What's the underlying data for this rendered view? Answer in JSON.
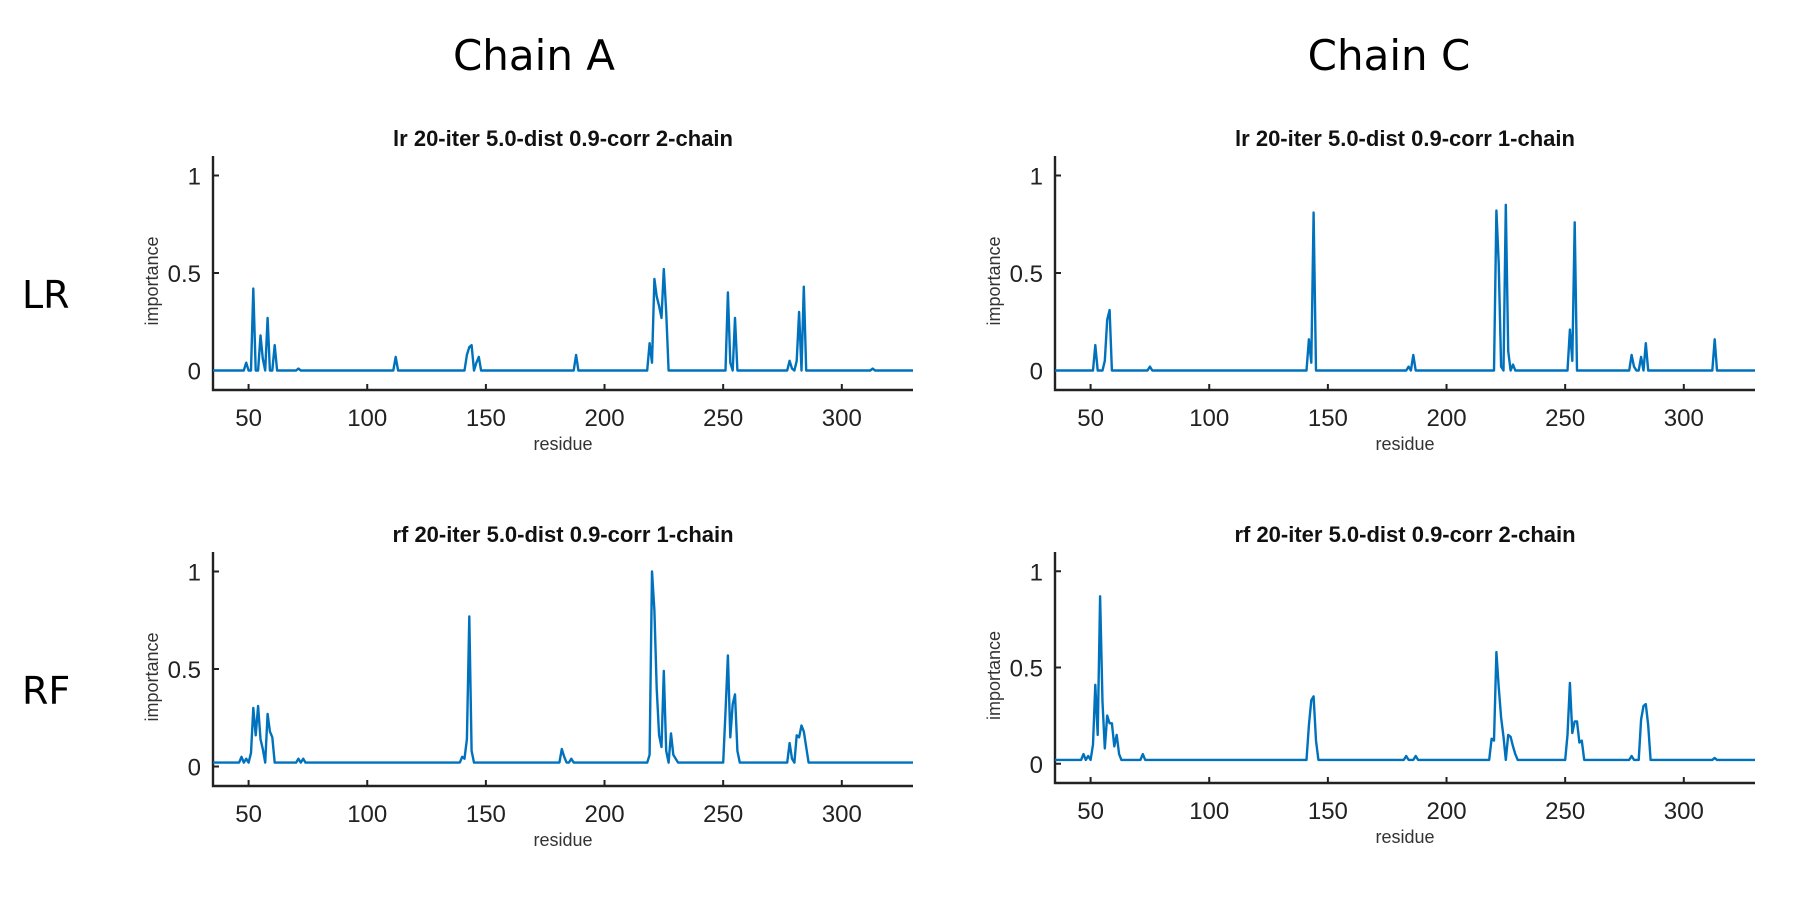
{
  "figure": {
    "column_titles": [
      "Chain A",
      "Chain C"
    ],
    "row_titles": [
      "LR",
      "RF"
    ]
  },
  "chart_data": [
    {
      "type": "line",
      "title": "lr 20-iter 5.0-dist 0.9-corr 2-chain",
      "xlabel": "residue",
      "ylabel": "importance",
      "xlim": [
        35,
        330
      ],
      "ylim": [
        -0.1,
        1.1
      ],
      "xticks": [
        50,
        100,
        150,
        200,
        250,
        300
      ],
      "yticks": [
        0,
        0.5,
        1
      ],
      "ytick_labels": [
        "0",
        "0.5",
        "1"
      ],
      "grid": false,
      "color": "#0072BD",
      "baseline": 0,
      "peaks": [
        [
          49,
          0.04
        ],
        [
          52,
          0.42
        ],
        [
          55,
          0.18
        ],
        [
          56,
          0.06
        ],
        [
          58,
          0.27
        ],
        [
          61,
          0.13
        ],
        [
          71,
          0.01
        ],
        [
          112,
          0.07
        ],
        [
          142,
          0.08
        ],
        [
          143,
          0.12
        ],
        [
          144,
          0.13
        ],
        [
          146,
          0.04
        ],
        [
          147,
          0.07
        ],
        [
          188,
          0.08
        ],
        [
          219,
          0.14
        ],
        [
          220,
          0.04
        ],
        [
          221,
          0.47
        ],
        [
          222,
          0.38
        ],
        [
          223,
          0.33
        ],
        [
          224,
          0.27
        ],
        [
          225,
          0.52
        ],
        [
          226,
          0.3
        ],
        [
          252,
          0.4
        ],
        [
          253,
          0.04
        ],
        [
          255,
          0.27
        ],
        [
          278,
          0.05
        ],
        [
          279,
          0.01
        ],
        [
          281,
          0.05
        ],
        [
          282,
          0.3
        ],
        [
          284,
          0.43
        ],
        [
          313,
          0.01
        ]
      ]
    },
    {
      "type": "line",
      "title": "lr 20-iter 5.0-dist 0.9-corr 1-chain",
      "xlabel": "residue",
      "ylabel": "importance",
      "xlim": [
        35,
        330
      ],
      "ylim": [
        -0.1,
        1.1
      ],
      "xticks": [
        50,
        100,
        150,
        200,
        250,
        300
      ],
      "yticks": [
        0,
        0.5,
        1
      ],
      "ytick_labels": [
        "0",
        "0.5",
        "1"
      ],
      "grid": false,
      "color": "#0072BD",
      "baseline": 0,
      "peaks": [
        [
          52,
          0.13
        ],
        [
          56,
          0.05
        ],
        [
          57,
          0.26
        ],
        [
          58,
          0.31
        ],
        [
          75,
          0.02
        ],
        [
          142,
          0.16
        ],
        [
          143,
          0.04
        ],
        [
          144,
          0.81
        ],
        [
          184,
          0.02
        ],
        [
          186,
          0.08
        ],
        [
          221,
          0.82
        ],
        [
          222,
          0.55
        ],
        [
          223,
          0.02
        ],
        [
          225,
          0.85
        ],
        [
          226,
          0.1
        ],
        [
          228,
          0.03
        ],
        [
          252,
          0.21
        ],
        [
          253,
          0.05
        ],
        [
          254,
          0.76
        ],
        [
          278,
          0.08
        ],
        [
          279,
          0.02
        ],
        [
          282,
          0.07
        ],
        [
          284,
          0.14
        ],
        [
          313,
          0.16
        ]
      ]
    },
    {
      "type": "line",
      "title": "rf 20-iter 5.0-dist 0.9-corr 1-chain",
      "xlabel": "residue",
      "ylabel": "importance",
      "xlim": [
        35,
        330
      ],
      "ylim": [
        -0.1,
        1.1
      ],
      "xticks": [
        50,
        100,
        150,
        200,
        250,
        300
      ],
      "yticks": [
        0,
        0.5,
        1
      ],
      "ytick_labels": [
        "0",
        "0.5",
        "1"
      ],
      "grid": false,
      "color": "#0072BD",
      "baseline": 0.02,
      "peaks": [
        [
          47,
          0.05
        ],
        [
          49,
          0.04
        ],
        [
          51,
          0.07
        ],
        [
          52,
          0.3
        ],
        [
          53,
          0.16
        ],
        [
          54,
          0.31
        ],
        [
          55,
          0.14
        ],
        [
          56,
          0.09
        ],
        [
          58,
          0.27
        ],
        [
          59,
          0.18
        ],
        [
          60,
          0.15
        ],
        [
          71,
          0.04
        ],
        [
          73,
          0.04
        ],
        [
          140,
          0.05
        ],
        [
          141,
          0.04
        ],
        [
          142,
          0.14
        ],
        [
          143,
          0.77
        ],
        [
          144,
          0.08
        ],
        [
          182,
          0.09
        ],
        [
          183,
          0.05
        ],
        [
          186,
          0.04
        ],
        [
          219,
          0.06
        ],
        [
          220,
          1.0
        ],
        [
          221,
          0.8
        ],
        [
          222,
          0.4
        ],
        [
          223,
          0.16
        ],
        [
          224,
          0.1
        ],
        [
          225,
          0.49
        ],
        [
          226,
          0.08
        ],
        [
          228,
          0.17
        ],
        [
          229,
          0.06
        ],
        [
          230,
          0.04
        ],
        [
          251,
          0.28
        ],
        [
          252,
          0.57
        ],
        [
          253,
          0.15
        ],
        [
          254,
          0.32
        ],
        [
          255,
          0.37
        ],
        [
          256,
          0.08
        ],
        [
          278,
          0.12
        ],
        [
          279,
          0.04
        ],
        [
          281,
          0.16
        ],
        [
          282,
          0.15
        ],
        [
          283,
          0.21
        ],
        [
          284,
          0.18
        ],
        [
          285,
          0.1
        ]
      ]
    },
    {
      "type": "line",
      "title": "rf 20-iter 5.0-dist 0.9-corr 2-chain",
      "xlabel": "residue",
      "ylabel": "importance",
      "xlim": [
        35,
        330
      ],
      "ylim": [
        -0.1,
        1.1
      ],
      "xticks": [
        50,
        100,
        150,
        200,
        250,
        300
      ],
      "yticks": [
        0,
        0.5,
        1
      ],
      "ytick_labels": [
        "0",
        "0.5",
        "1"
      ],
      "grid": false,
      "color": "#0072BD",
      "baseline": 0.02,
      "peaks": [
        [
          47,
          0.05
        ],
        [
          49,
          0.04
        ],
        [
          51,
          0.1
        ],
        [
          52,
          0.41
        ],
        [
          53,
          0.15
        ],
        [
          54,
          0.87
        ],
        [
          55,
          0.32
        ],
        [
          56,
          0.08
        ],
        [
          57,
          0.25
        ],
        [
          58,
          0.21
        ],
        [
          59,
          0.21
        ],
        [
          60,
          0.09
        ],
        [
          61,
          0.15
        ],
        [
          62,
          0.05
        ],
        [
          72,
          0.05
        ],
        [
          142,
          0.2
        ],
        [
          143,
          0.33
        ],
        [
          144,
          0.35
        ],
        [
          145,
          0.12
        ],
        [
          183,
          0.04
        ],
        [
          187,
          0.04
        ],
        [
          219,
          0.13
        ],
        [
          220,
          0.12
        ],
        [
          221,
          0.58
        ],
        [
          222,
          0.4
        ],
        [
          223,
          0.24
        ],
        [
          224,
          0.14
        ],
        [
          226,
          0.15
        ],
        [
          227,
          0.14
        ],
        [
          228,
          0.09
        ],
        [
          229,
          0.05
        ],
        [
          251,
          0.15
        ],
        [
          252,
          0.42
        ],
        [
          253,
          0.16
        ],
        [
          254,
          0.22
        ],
        [
          255,
          0.22
        ],
        [
          256,
          0.11
        ],
        [
          257,
          0.12
        ],
        [
          278,
          0.04
        ],
        [
          282,
          0.23
        ],
        [
          283,
          0.3
        ],
        [
          284,
          0.31
        ],
        [
          285,
          0.2
        ],
        [
          313,
          0.03
        ]
      ]
    }
  ]
}
